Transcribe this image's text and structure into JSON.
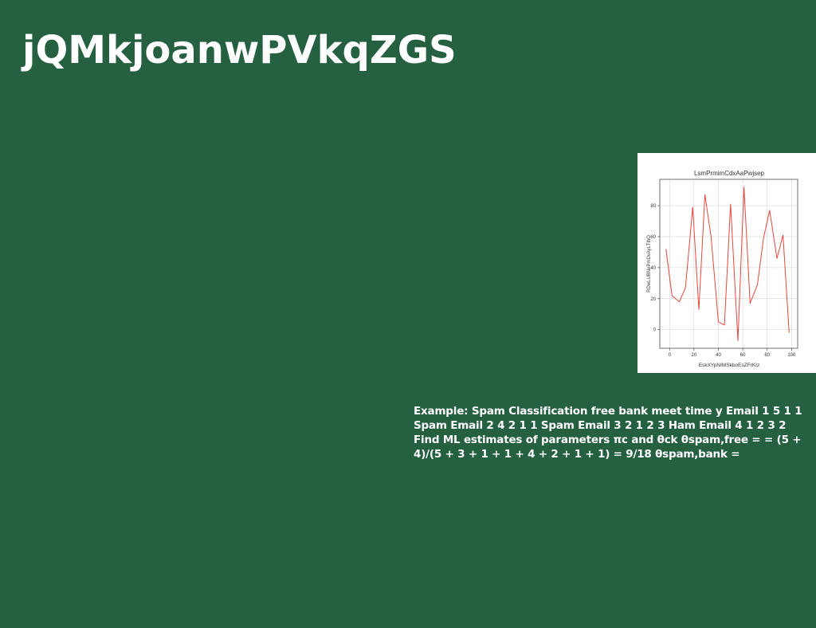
{
  "slide": {
    "title": "jQMkjoanwPVkqZGS",
    "body": "Example: Spam Classification free bank meet time y Email 1 5 1 1 Spam Email 2 4 2 1 1 Spam Email 3 2 1 2 3 Ham Email 4 1 2 3 2 Find ML estimates of parameters πc and θck θspam,free = = (5 + 4)/(5 + 3 + 1 + 1 + 4 + 2 + 1 + 1) = 9/18 θspam,bank ="
  },
  "colors": {
    "background": "#256040",
    "text": "#ffffff",
    "line": "#e8453c",
    "axis": "#333333",
    "grid": "#cccccc"
  },
  "chart_data": {
    "type": "line",
    "title": "LsmPrmimCdxAaPwjsep",
    "xlabel": "EskXYpNIMSkboEsZFrKIz",
    "ylabel": "RDwLUBNePmDvAyLTIhO",
    "xlim": [
      -8,
      105
    ],
    "ylim": [
      -12,
      97
    ],
    "xticks": [
      0,
      20,
      40,
      60,
      80,
      100
    ],
    "yticks": [
      0,
      20,
      40,
      60,
      80
    ],
    "grid": true,
    "series": [
      {
        "x": [
          -3,
          2,
          8,
          13,
          19,
          24,
          29,
          34,
          40,
          45,
          50,
          56,
          61,
          66,
          72,
          77,
          82,
          88,
          93,
          98
        ],
        "y": [
          52,
          22,
          18,
          27,
          79,
          13,
          87,
          60,
          5,
          3,
          81,
          -7,
          92,
          17,
          29,
          59,
          77,
          46,
          61,
          -2
        ]
      }
    ]
  }
}
